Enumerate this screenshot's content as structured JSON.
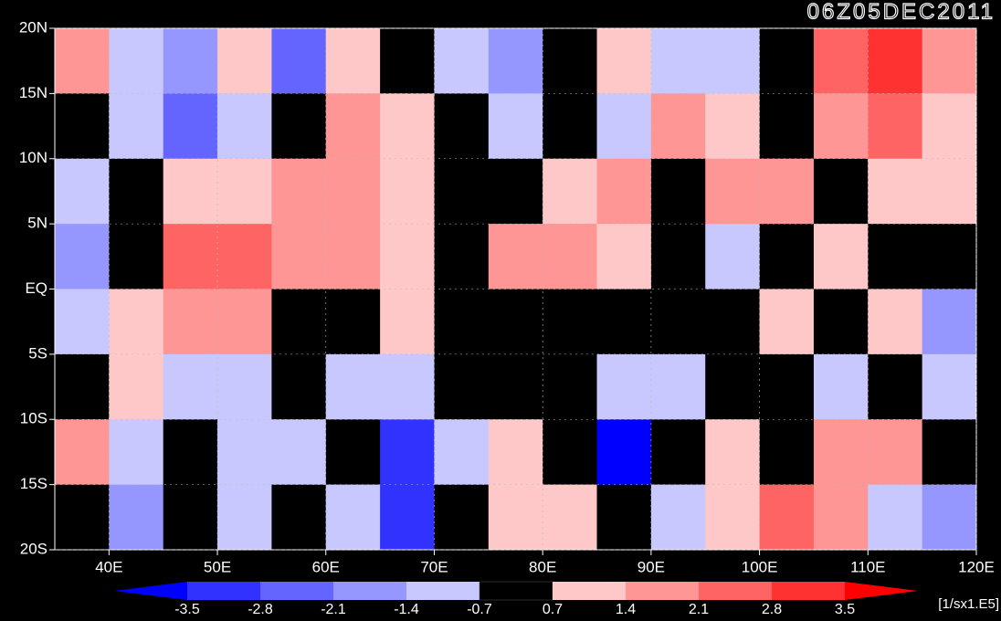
{
  "chart_data": {
    "type": "map",
    "title": "06Z05DEC2011",
    "xlim": [
      35,
      120
    ],
    "ylim": [
      -20,
      20
    ],
    "xticks": [
      {
        "value": 40,
        "label": "40E"
      },
      {
        "value": 50,
        "label": "50E"
      },
      {
        "value": 60,
        "label": "60E"
      },
      {
        "value": 70,
        "label": "70E"
      },
      {
        "value": 80,
        "label": "80E"
      },
      {
        "value": 90,
        "label": "90E"
      },
      {
        "value": 100,
        "label": "100E"
      },
      {
        "value": 110,
        "label": "110E"
      },
      {
        "value": 120,
        "label": "120E"
      }
    ],
    "yticks": [
      {
        "value": -20,
        "label": "20S"
      },
      {
        "value": -15,
        "label": "15S"
      },
      {
        "value": -10,
        "label": "10S"
      },
      {
        "value": -5,
        "label": "5S"
      },
      {
        "value": 0,
        "label": "EQ"
      },
      {
        "value": 5,
        "label": "5N"
      },
      {
        "value": 10,
        "label": "10N"
      },
      {
        "value": 15,
        "label": "15N"
      },
      {
        "value": 20,
        "label": "20N"
      }
    ],
    "field": {
      "lons": [
        37.5,
        42.5,
        47.5,
        52.5,
        57.5,
        62.5,
        67.5,
        72.5,
        77.5,
        82.5,
        87.5,
        92.5,
        97.5,
        102.5,
        107.5,
        112.5,
        117.5
      ],
      "lats": [
        17.5,
        12.5,
        7.5,
        2.5,
        -2.5,
        -7.5,
        -12.5,
        -17.5
      ],
      "values": [
        [
          1.5,
          -1,
          -1.5,
          1,
          -2.5,
          0.8,
          0,
          -1,
          -1.5,
          0,
          1,
          -1,
          -1,
          0,
          2.5,
          3,
          2
        ],
        [
          0,
          -1,
          -2.5,
          -1,
          0,
          1.5,
          0.8,
          0,
          -1,
          0,
          -1,
          2,
          1,
          0,
          1.5,
          2.5,
          1
        ],
        [
          -1,
          0,
          1,
          0.8,
          1.5,
          2,
          0.8,
          0,
          0,
          0.8,
          1.5,
          0,
          1.5,
          2,
          0,
          1,
          1
        ],
        [
          -1.5,
          0,
          2.5,
          2.5,
          1.5,
          2,
          1,
          0,
          1.5,
          2,
          0.8,
          0,
          -1,
          0,
          0.8,
          0,
          0
        ],
        [
          -1,
          1,
          1.5,
          1.5,
          0,
          0,
          0.8,
          0,
          0,
          0,
          0,
          0,
          0,
          0.8,
          0,
          0.8,
          -1.5
        ],
        [
          0,
          0.8,
          -1,
          -0.8,
          0,
          -1,
          -1,
          0,
          0,
          0,
          -1,
          -1,
          0,
          0,
          -1,
          0,
          -1
        ],
        [
          1.5,
          -1,
          0,
          -1,
          -1,
          0,
          -3,
          -1,
          0.8,
          0,
          -3.5,
          0,
          1,
          0,
          1.5,
          2,
          0
        ],
        [
          0,
          -2,
          0,
          -1,
          0,
          -1,
          -3,
          0,
          1,
          0.8,
          0,
          -1,
          0.8,
          2.5,
          2,
          -1,
          -1.5
        ]
      ]
    },
    "colorbar": {
      "levels": [
        -3.5,
        -2.8,
        -2.1,
        -1.4,
        -0.7,
        0.7,
        1.4,
        2.1,
        2.8,
        3.5
      ],
      "colors": [
        "#0000ff",
        "#3232ff",
        "#6464ff",
        "#9696ff",
        "#c8c8ff",
        "#000000",
        "#ffc8c8",
        "#ff9696",
        "#ff6464",
        "#ff3232",
        "#ff0000"
      ],
      "unit": "[1/sx1.E5]"
    }
  }
}
